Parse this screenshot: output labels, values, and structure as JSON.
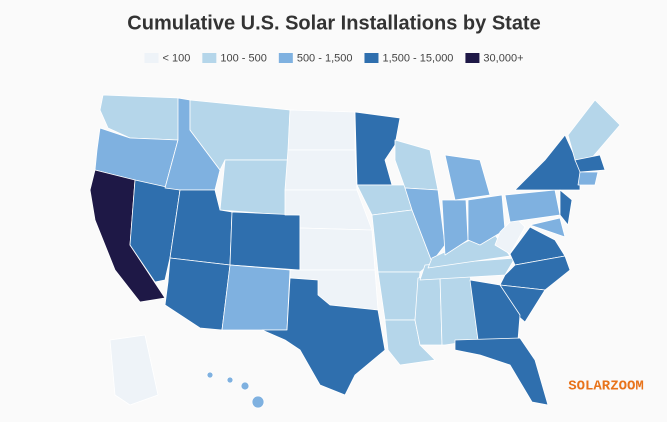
{
  "title": "Cumulative U.S. Solar Installations by State",
  "legend": [
    {
      "label": "< 100",
      "color": "#eef3f8"
    },
    {
      "label": "100 - 500",
      "color": "#b5d6ea"
    },
    {
      "label": "500 - 1,500",
      "color": "#7fb1e0"
    },
    {
      "label": "1,500 - 15,000",
      "color": "#2f6fae"
    },
    {
      "label": "30,000+",
      "color": "#1e1846"
    }
  ],
  "watermark": "SOLARZOOM"
}
